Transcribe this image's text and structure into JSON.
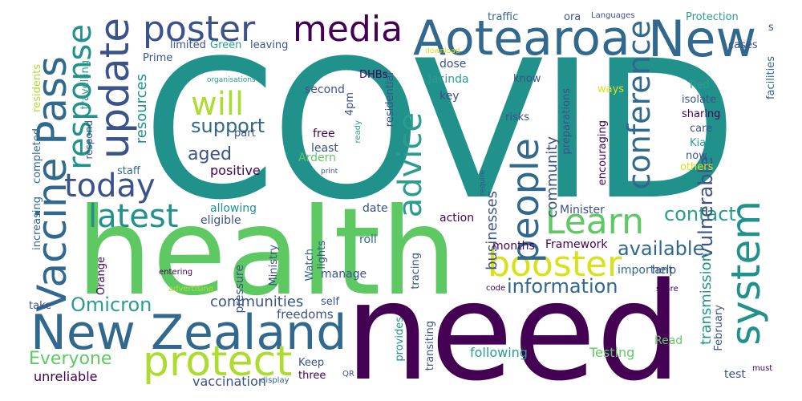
{
  "palette": {
    "dark_purple": "#440154",
    "indigo": "#3b528b",
    "blue": "#31688e",
    "teal": "#21918c",
    "green_teal": "#2a9d8f",
    "green": "#5ec962",
    "yellow_green": "#addc30",
    "yellow": "#d8e219"
  },
  "words": {
    "covid": "COVID",
    "health": "health",
    "need": "need",
    "aotearoa": "Aotearoa",
    "new": "New",
    "new_zealand": "New Zealand",
    "vaccine_pass": "Vaccine Pass",
    "protect": "protect",
    "booster": "booster",
    "system": "system",
    "update": "update",
    "poster": "poster",
    "media": "media",
    "people": "people",
    "latest": "latest",
    "learn": "Learn",
    "response": "response",
    "today": "today",
    "will": "will",
    "advice": "advice",
    "conference": "conference",
    "information": "information",
    "available": "available",
    "contact": "contact",
    "omicron": "Omicron",
    "support": "support",
    "aged": "aged",
    "everyone": "Everyone",
    "communities": "communities",
    "vulnerable": "vulnerable",
    "transmission": "transmission",
    "resources": "resources",
    "businesses": "businesses",
    "community": "community",
    "positive": "positive",
    "freedoms": "freedoms",
    "testing": "Testing",
    "following": "following",
    "unreliable": "unreliable",
    "vaccination": "vaccination",
    "framework": "Framework",
    "minister": "Minister",
    "important": "important",
    "months": "months",
    "manage": "manage",
    "pressure": "pressure",
    "roll": "roll",
    "action": "action",
    "date": "date",
    "allowing": "allowing",
    "eligible": "eligible",
    "ardern": "Ardern",
    "jacinda": "Jacinda",
    "dose": "dose",
    "key": "key",
    "second": "second",
    "free": "free",
    "least": "least",
    "staff": "staff",
    "take": "take",
    "self": "self",
    "keep": "Keep",
    "three": "three",
    "read": "Read",
    "test": "test",
    "help": "help",
    "share": "share",
    "must": "must",
    "code": "code",
    "display": "display",
    "qr": "QR",
    "entering": "entering",
    "advertising": "advertising",
    "watch": "Watch",
    "lights": "lights",
    "orange": "Orange",
    "ministry": "Ministry",
    "increasing": "increasing",
    "completed": "completed",
    "respond": "respond",
    "travelling": "travelling",
    "residents": "residents",
    "prime": "Prime",
    "limited": "limited",
    "green": "Green",
    "leaving": "leaving",
    "dhbs": "DHBs",
    "traffic": "traffic",
    "ora": "ora",
    "languages": "Languages",
    "protection": "Protection",
    "s": "s",
    "cases": "cases",
    "facilities": "facilities",
    "download": "download",
    "organisations": "organisations",
    "fourpm": "4pm",
    "ready": "ready",
    "residential": "residential",
    "part": "part",
    "print": "print",
    "know": "know",
    "risks": "risks",
    "preparations": "preparations",
    "encouraging": "encouraging",
    "ways": "ways",
    "red": "Red",
    "isolate": "isolate",
    "sharing": "sharing",
    "care": "care",
    "kia": "Kia",
    "now": "now",
    "others": "others",
    "require": "require",
    "tracing": "tracing",
    "provides": "provides",
    "transiting": "transiting",
    "february": "February"
  }
}
